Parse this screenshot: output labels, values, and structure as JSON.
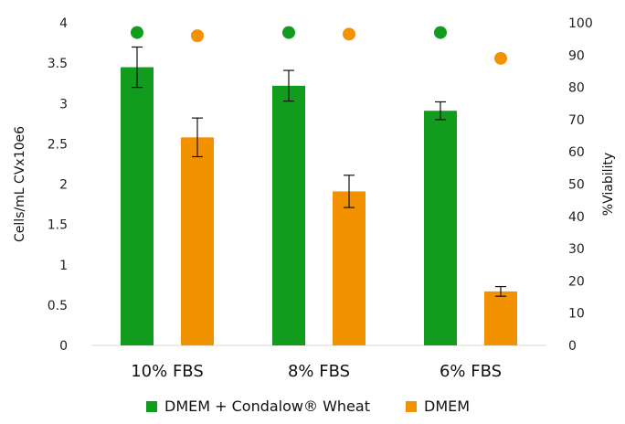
{
  "chart_data": {
    "type": "bar",
    "categories": [
      "10% FBS",
      "8% FBS",
      "6% FBS"
    ],
    "series": [
      {
        "name": "DMEM + Condalow® Wheat",
        "values": [
          3.45,
          3.22,
          2.91
        ],
        "errors": [
          0.25,
          0.19,
          0.11
        ],
        "viability": [
          97,
          97,
          97
        ],
        "color": "#129c1d"
      },
      {
        "name": "DMEM",
        "values": [
          2.58,
          1.91,
          0.67
        ],
        "errors": [
          0.24,
          0.2,
          0.06
        ],
        "viability": [
          96,
          96.5,
          89
        ],
        "color": "#f39201"
      }
    ],
    "ylabel": "Cells/mL CVx10e6",
    "y2label": "%Viability",
    "ylim": [
      0,
      4
    ],
    "y2lim": [
      0,
      100
    ],
    "yticks": [
      "0",
      "0.5",
      "1",
      "1.5",
      "2",
      "2.5",
      "3",
      "3.5",
      "4"
    ],
    "y2ticks": [
      "0",
      "10",
      "20",
      "30",
      "40",
      "50",
      "60",
      "70",
      "80",
      "90",
      "100"
    ],
    "grid": false,
    "legend_position": "bottom"
  }
}
